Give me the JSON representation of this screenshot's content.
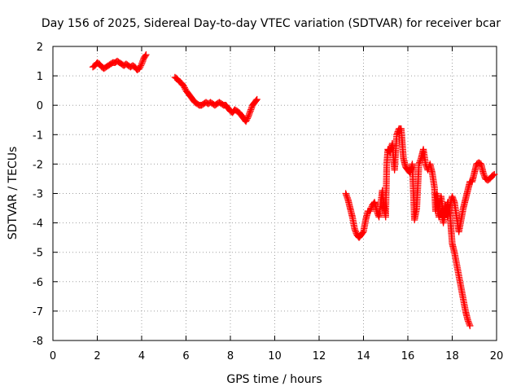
{
  "chart_data": {
    "type": "scatter",
    "title": "Day 156 of 2025, Sidereal Day-to-day VTEC variation (SDTVAR) for receiver bcar",
    "xlabel": "GPS time / hours",
    "ylabel": "SDTVAR / TECUs",
    "xlim": [
      0,
      20
    ],
    "ylim": [
      -8,
      2
    ],
    "xticks": [
      "0",
      "2",
      "4",
      "6",
      "8",
      "10",
      "12",
      "14",
      "16",
      "18",
      "20"
    ],
    "yticks": [
      "2",
      "1",
      "0",
      "-1",
      "-2",
      "-3",
      "-4",
      "-5",
      "-6",
      "-7",
      "-8"
    ],
    "grid": true,
    "marker": "plus",
    "series": [
      {
        "name": "SDTVAR",
        "color": "#ff0000",
        "segments": [
          [
            [
              1.8,
              1.3
            ],
            [
              1.9,
              1.35
            ],
            [
              2.0,
              1.45
            ],
            [
              2.1,
              1.4
            ],
            [
              2.2,
              1.3
            ],
            [
              2.3,
              1.25
            ],
            [
              2.4,
              1.3
            ],
            [
              2.5,
              1.35
            ],
            [
              2.6,
              1.4
            ],
            [
              2.7,
              1.45
            ],
            [
              2.8,
              1.45
            ],
            [
              2.9,
              1.5
            ],
            [
              3.0,
              1.45
            ],
            [
              3.1,
              1.4
            ],
            [
              3.2,
              1.35
            ],
            [
              3.3,
              1.4
            ],
            [
              3.4,
              1.35
            ],
            [
              3.5,
              1.3
            ],
            [
              3.6,
              1.35
            ],
            [
              3.7,
              1.3
            ],
            [
              3.8,
              1.2
            ],
            [
              3.9,
              1.25
            ],
            [
              4.0,
              1.4
            ],
            [
              4.1,
              1.6
            ],
            [
              4.2,
              1.72
            ]
          ],
          [
            [
              5.5,
              0.95
            ],
            [
              5.6,
              0.9
            ],
            [
              5.7,
              0.8
            ],
            [
              5.8,
              0.75
            ],
            [
              5.9,
              0.65
            ],
            [
              6.0,
              0.5
            ],
            [
              6.1,
              0.4
            ],
            [
              6.2,
              0.3
            ],
            [
              6.3,
              0.2
            ],
            [
              6.4,
              0.1
            ],
            [
              6.5,
              0.05
            ],
            [
              6.6,
              0.0
            ],
            [
              6.7,
              0.0
            ],
            [
              6.8,
              0.05
            ],
            [
              6.9,
              0.1
            ],
            [
              7.0,
              0.05
            ],
            [
              7.1,
              0.1
            ],
            [
              7.2,
              0.05
            ],
            [
              7.3,
              0.0
            ],
            [
              7.4,
              0.05
            ],
            [
              7.5,
              0.1
            ],
            [
              7.6,
              0.05
            ],
            [
              7.7,
              0.0
            ],
            [
              7.8,
              0.0
            ],
            [
              7.9,
              -0.1
            ],
            [
              8.0,
              -0.2
            ],
            [
              8.1,
              -0.25
            ],
            [
              8.2,
              -0.15
            ],
            [
              8.3,
              -0.2
            ],
            [
              8.4,
              -0.25
            ],
            [
              8.5,
              -0.35
            ],
            [
              8.6,
              -0.45
            ],
            [
              8.7,
              -0.55
            ],
            [
              8.8,
              -0.4
            ],
            [
              8.9,
              -0.2
            ],
            [
              9.0,
              0.0
            ],
            [
              9.1,
              0.1
            ],
            [
              9.2,
              0.2
            ]
          ],
          [
            [
              13.2,
              -3.0
            ],
            [
              13.3,
              -3.2
            ],
            [
              13.4,
              -3.5
            ],
            [
              13.5,
              -3.8
            ],
            [
              13.6,
              -4.2
            ],
            [
              13.7,
              -4.4
            ],
            [
              13.8,
              -4.5
            ],
            [
              13.9,
              -4.4
            ],
            [
              14.0,
              -4.3
            ],
            [
              14.1,
              -3.9
            ],
            [
              14.2,
              -3.6
            ],
            [
              14.3,
              -3.6
            ],
            [
              14.4,
              -3.4
            ],
            [
              14.5,
              -3.3
            ],
            [
              14.6,
              -3.6
            ],
            [
              14.7,
              -3.8
            ],
            [
              14.8,
              -3.2
            ],
            [
              14.85,
              -2.9
            ],
            [
              14.9,
              -3.3
            ],
            [
              15.0,
              -3.8
            ],
            [
              15.05,
              -2.0
            ],
            [
              15.1,
              -1.5
            ],
            [
              15.2,
              -1.6
            ],
            [
              15.3,
              -1.3
            ],
            [
              15.4,
              -2.2
            ],
            [
              15.5,
              -1.0
            ],
            [
              15.6,
              -0.8
            ],
            [
              15.7,
              -0.8
            ],
            [
              15.8,
              -1.8
            ],
            [
              15.9,
              -2.1
            ],
            [
              16.0,
              -2.2
            ],
            [
              16.1,
              -2.3
            ],
            [
              16.2,
              -2.0
            ],
            [
              16.3,
              -3.9
            ],
            [
              16.4,
              -3.5
            ],
            [
              16.5,
              -2.0
            ],
            [
              16.6,
              -1.8
            ],
            [
              16.7,
              -1.5
            ],
            [
              16.8,
              -2.0
            ],
            [
              16.9,
              -2.2
            ],
            [
              17.0,
              -2.0
            ],
            [
              17.1,
              -2.3
            ],
            [
              17.2,
              -2.8
            ],
            [
              17.25,
              -3.6
            ],
            [
              17.3,
              -3.2
            ],
            [
              17.4,
              -3.8
            ],
            [
              17.5,
              -3.6
            ],
            [
              17.6,
              -4.0
            ],
            [
              17.7,
              -3.6
            ],
            [
              17.8,
              -3.3
            ],
            [
              17.9,
              -3.7
            ],
            [
              17.95,
              -4.2
            ],
            [
              18.0,
              -4.7
            ],
            [
              18.1,
              -5.0
            ],
            [
              18.2,
              -5.4
            ],
            [
              18.3,
              -5.8
            ],
            [
              18.4,
              -6.2
            ],
            [
              18.5,
              -6.6
            ],
            [
              18.6,
              -7.0
            ],
            [
              18.7,
              -7.3
            ],
            [
              18.8,
              -7.5
            ]
          ],
          [
            [
              17.3,
              -3.0
            ],
            [
              17.4,
              -3.5
            ],
            [
              17.5,
              -3.1
            ],
            [
              17.6,
              -3.7
            ],
            [
              17.7,
              -3.4
            ],
            [
              17.8,
              -3.8
            ],
            [
              17.9,
              -3.4
            ],
            [
              18.0,
              -3.1
            ],
            [
              18.1,
              -3.3
            ],
            [
              18.2,
              -3.8
            ],
            [
              18.3,
              -4.3
            ],
            [
              18.4,
              -3.9
            ],
            [
              18.5,
              -3.5
            ],
            [
              18.6,
              -3.2
            ],
            [
              18.7,
              -2.9
            ],
            [
              18.8,
              -2.6
            ],
            [
              18.9,
              -2.6
            ],
            [
              19.0,
              -2.3
            ],
            [
              19.1,
              -2.0
            ],
            [
              19.2,
              -1.95
            ],
            [
              19.3,
              -2.0
            ],
            [
              19.4,
              -2.3
            ],
            [
              19.5,
              -2.5
            ],
            [
              19.6,
              -2.55
            ],
            [
              19.7,
              -2.5
            ],
            [
              19.8,
              -2.4
            ],
            [
              19.9,
              -2.35
            ]
          ]
        ]
      }
    ]
  }
}
